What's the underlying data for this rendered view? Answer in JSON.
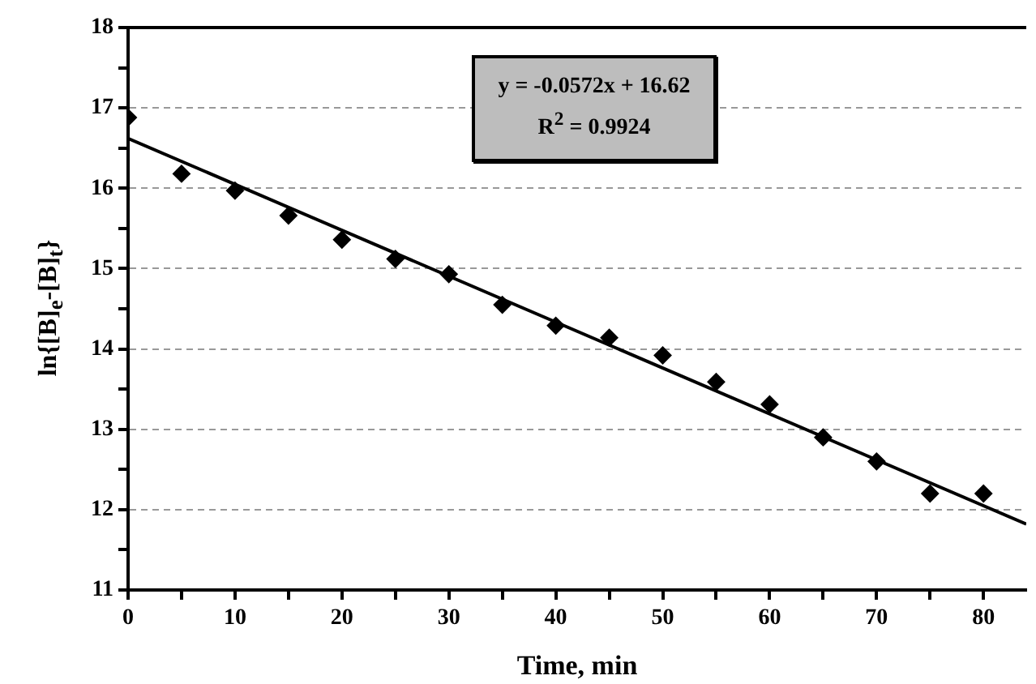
{
  "chart_data": {
    "type": "scatter",
    "xlabel": "Time, min",
    "ylabel": "ln{[B]$_{e}$-[B]$_{t}$}",
    "xlim": [
      0,
      84
    ],
    "ylim": [
      11,
      18
    ],
    "xticks": [
      0,
      {
        "value": 5,
        "label": null
      },
      10,
      {
        "value": 15,
        "label": null
      },
      20,
      {
        "value": 25,
        "label": null
      },
      30,
      {
        "value": 35,
        "label": null
      },
      40,
      {
        "value": 45,
        "label": null
      },
      50,
      {
        "value": 55,
        "label": null
      },
      60,
      {
        "value": 65,
        "label": null
      },
      70,
      {
        "value": 75,
        "label": null
      },
      80
    ],
    "yticks": [
      11,
      {
        "value": 11.5,
        "label": null
      },
      12,
      {
        "value": 12.5,
        "label": null
      },
      13,
      {
        "value": 13.5,
        "label": null
      },
      14,
      {
        "value": 14.5,
        "label": null
      },
      15,
      {
        "value": 15.5,
        "label": null
      },
      16,
      {
        "value": 16.5,
        "label": null
      },
      17,
      {
        "value": 17.5,
        "label": null
      },
      18
    ],
    "grid": "y",
    "marker": "diamond",
    "series": [
      {
        "color": "#000000",
        "x": [
          0,
          5,
          10,
          15,
          20,
          25,
          30,
          35,
          40,
          45,
          50,
          55,
          60,
          65,
          70,
          75,
          80
        ],
        "values": [
          16.88,
          16.18,
          15.97,
          15.66,
          15.36,
          15.12,
          14.93,
          14.55,
          14.29,
          14.14,
          13.92,
          13.59,
          13.31,
          12.9,
          12.6,
          12.2,
          12.2
        ]
      },
      {
        "type": "line",
        "color": "#000000",
        "x": [
          0,
          84
        ],
        "values": [
          16.62,
          11.82
        ],
        "marker": "none",
        "line_style": "solid"
      }
    ],
    "annotations": [
      "y = -0.0572x + 16.62",
      "R$^{2}$ = 0.9924"
    ]
  }
}
